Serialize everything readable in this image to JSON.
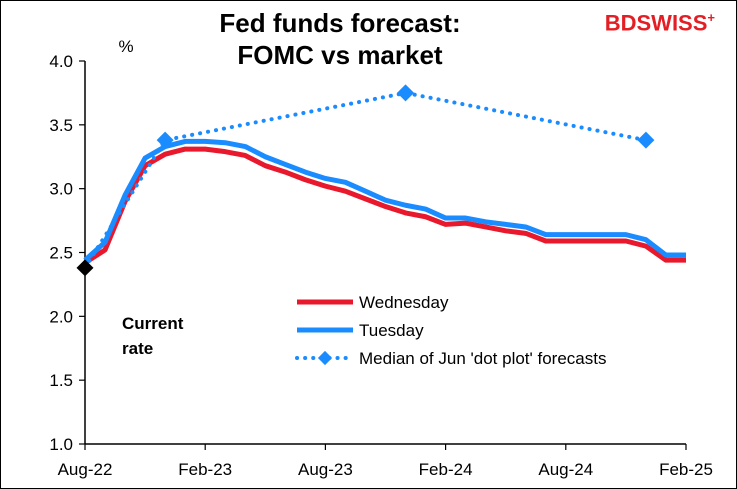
{
  "title_line1": "Fed funds forecast:",
  "title_line2": "FOMC vs market",
  "logo": {
    "part1": "BD",
    "part2": "SWISS",
    "plus": "+"
  },
  "chart_data": {
    "type": "line",
    "title": "Fed funds forecast: FOMC vs market",
    "ylabel": "%",
    "ylim": [
      1.0,
      4.0
    ],
    "yticks": [
      1.0,
      1.5,
      2.0,
      2.5,
      3.0,
      3.5,
      4.0
    ],
    "ytick_labels": [
      "1.0",
      "1.5",
      "2.0",
      "2.5",
      "3.0",
      "3.5",
      "4.0"
    ],
    "xlim": [
      0,
      30
    ],
    "xticks": [
      0,
      6,
      12,
      18,
      24,
      30
    ],
    "xtick_labels": [
      "Aug-22",
      "Feb-23",
      "Aug-23",
      "Feb-24",
      "Aug-24",
      "Feb-25"
    ],
    "grid": false,
    "legend": "center-right",
    "series": [
      {
        "name": "Wednesday",
        "color": "#e8192c",
        "style": "solid",
        "x": [
          0,
          1,
          2,
          3,
          4,
          5,
          6,
          7,
          8,
          9,
          10,
          11,
          12,
          13,
          14,
          15,
          16,
          17,
          18,
          19,
          20,
          21,
          22,
          23,
          24,
          25,
          26,
          27,
          28,
          29,
          30
        ],
        "y": [
          2.42,
          2.52,
          2.9,
          3.18,
          3.27,
          3.31,
          3.31,
          3.29,
          3.26,
          3.18,
          3.13,
          3.07,
          3.02,
          2.98,
          2.92,
          2.86,
          2.81,
          2.78,
          2.72,
          2.73,
          2.7,
          2.67,
          2.65,
          2.59,
          2.59,
          2.59,
          2.59,
          2.59,
          2.55,
          2.44,
          2.44
        ]
      },
      {
        "name": "Tuesday",
        "color": "#1a8cff",
        "style": "solid",
        "x": [
          0,
          1,
          2,
          3,
          4,
          5,
          6,
          7,
          8,
          9,
          10,
          11,
          12,
          13,
          14,
          15,
          16,
          17,
          18,
          19,
          20,
          21,
          22,
          23,
          24,
          25,
          26,
          27,
          28,
          29,
          30
        ],
        "y": [
          2.44,
          2.58,
          2.95,
          3.24,
          3.33,
          3.37,
          3.37,
          3.36,
          3.33,
          3.25,
          3.19,
          3.13,
          3.08,
          3.05,
          2.98,
          2.91,
          2.87,
          2.84,
          2.77,
          2.77,
          2.74,
          2.72,
          2.7,
          2.64,
          2.64,
          2.64,
          2.64,
          2.64,
          2.6,
          2.48,
          2.48
        ]
      },
      {
        "name": "Median of Jun 'dot plot' forecasts",
        "color": "#1a8cff",
        "style": "dotted",
        "x": [
          0,
          4,
          16,
          28
        ],
        "y": [
          2.38,
          3.38,
          3.75,
          3.38
        ]
      }
    ],
    "current_rate": {
      "x": 0,
      "y": 2.38,
      "color": "#000000"
    },
    "annotation_line1": "Current",
    "annotation_line2": "rate"
  }
}
